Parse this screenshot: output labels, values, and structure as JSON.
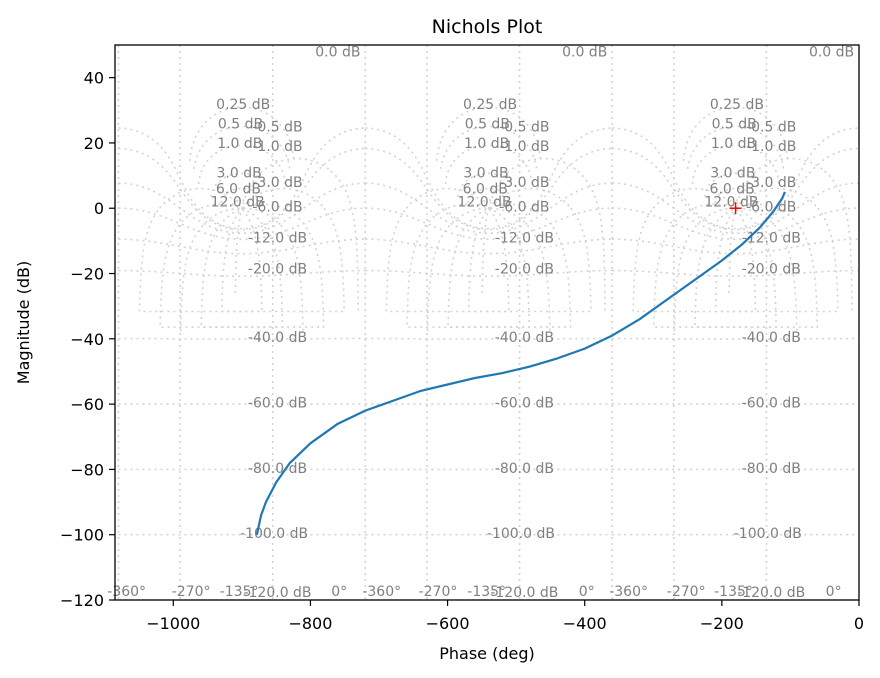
{
  "chart_data": {
    "type": "line",
    "title": "Nichols Plot",
    "xlabel": "Phase (deg)",
    "ylabel": "Magnitude (dB)",
    "xlim": [
      -1085,
      0
    ],
    "ylim": [
      -120,
      50
    ],
    "xticks": [
      -1000,
      -800,
      -600,
      -400,
      -200,
      0
    ],
    "xtick_labels": [
      "−1000",
      "−800",
      "−600",
      "−400",
      "−200",
      "0"
    ],
    "yticks": [
      -120,
      -100,
      -80,
      -60,
      -40,
      -20,
      0,
      20,
      40
    ],
    "ytick_labels": [
      "−120",
      "−100",
      "−80",
      "−60",
      "−40",
      "−20",
      "0",
      "20",
      "40"
    ],
    "series": [
      {
        "color": "#1f77b4",
        "points": [
          [
            -878,
            -100
          ],
          [
            -872,
            -94
          ],
          [
            -865,
            -90
          ],
          [
            -850,
            -84
          ],
          [
            -830,
            -78
          ],
          [
            -800,
            -72
          ],
          [
            -760,
            -66
          ],
          [
            -720,
            -62
          ],
          [
            -680,
            -59
          ],
          [
            -640,
            -56
          ],
          [
            -600,
            -54
          ],
          [
            -560,
            -52
          ],
          [
            -520,
            -50.5
          ],
          [
            -480,
            -48.5
          ],
          [
            -440,
            -46
          ],
          [
            -400,
            -43
          ],
          [
            -360,
            -39
          ],
          [
            -320,
            -34
          ],
          [
            -280,
            -28
          ],
          [
            -240,
            -22
          ],
          [
            -200,
            -16
          ],
          [
            -170,
            -11
          ],
          [
            -145,
            -6
          ],
          [
            -125,
            -1
          ],
          [
            -112,
            3
          ],
          [
            -108,
            5
          ]
        ]
      }
    ],
    "critical_point": {
      "x": -180,
      "y": 0,
      "color": "#ff0000"
    },
    "grid": {
      "color": "#d3d3d3",
      "label_color": "#808080",
      "period_centers": [
        -900,
        -540,
        -180
      ],
      "closed_loop_mag_labels": [
        "0.0 dB",
        "0.25 dB",
        "0.5 dB",
        "1.0 dB",
        "-0.5 dB",
        "-1.0 dB",
        "3.0 dB",
        "6.0 dB",
        "12.0 dB",
        "-3.0 dB",
        "-6.0 dB",
        "-12.0 dB",
        "-20.0 dB",
        "-40.0 dB",
        "-60.0 dB",
        "-80.0 dB",
        "-100.0 dB",
        "-120.0 dB"
      ],
      "phase_labels": [
        "-360°",
        "-270°",
        "-135°",
        "0°"
      ]
    }
  }
}
